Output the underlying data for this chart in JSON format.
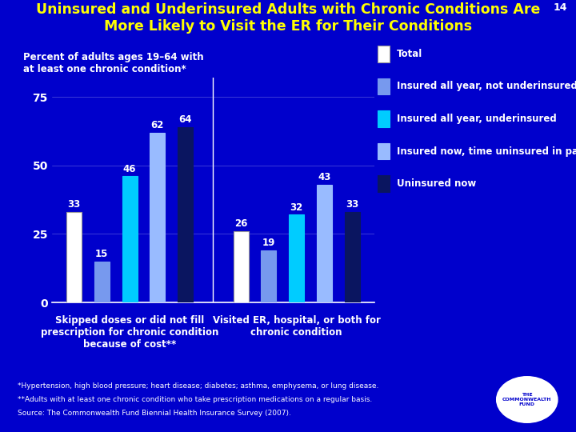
{
  "title_line1": "Uninsured and Underinsured Adults with Chronic Conditions Are",
  "title_line2": "More Likely to Visit the ER for Their Conditions",
  "slide_number": "14",
  "background_color": "#0000cc",
  "title_color": "#ffff00",
  "text_color": "#ffffff",
  "ylabel_text": "Percent of adults ages 19–64 with\nat least one chronic condition*",
  "yticks": [
    0,
    25,
    50,
    75
  ],
  "group1_label": "Skipped doses or did not fill\nprescription for chronic condition\nbecause of cost**",
  "group2_label": "Visited ER, hospital, or both for\nchronic condition",
  "legend_labels": [
    "Total",
    "Insured all year, not underinsured",
    "Insured all year, underinsured",
    "Insured now, time uninsured in past year",
    "Uninsured now"
  ],
  "bar_colors": [
    "#ffffff",
    "#7799ee",
    "#00ccff",
    "#99bbff",
    "#0a1560"
  ],
  "group1_values": [
    33,
    15,
    46,
    62,
    64
  ],
  "group2_values": [
    26,
    19,
    32,
    43,
    33
  ],
  "footnote1": "*Hypertension, high blood pressure; heart disease; diabetes; asthma, emphysema, or lung disease.",
  "footnote2": "**Adults with at least one chronic condition who take prescription medications on a regular basis.",
  "footnote3": "Source: The Commonwealth Fund Biennial Health Insurance Survey (2007).",
  "label_fontsize": 8.5,
  "title_fontsize": 12.5,
  "legend_fontsize": 8.5,
  "tick_fontsize": 10,
  "value_fontsize": 8.5
}
